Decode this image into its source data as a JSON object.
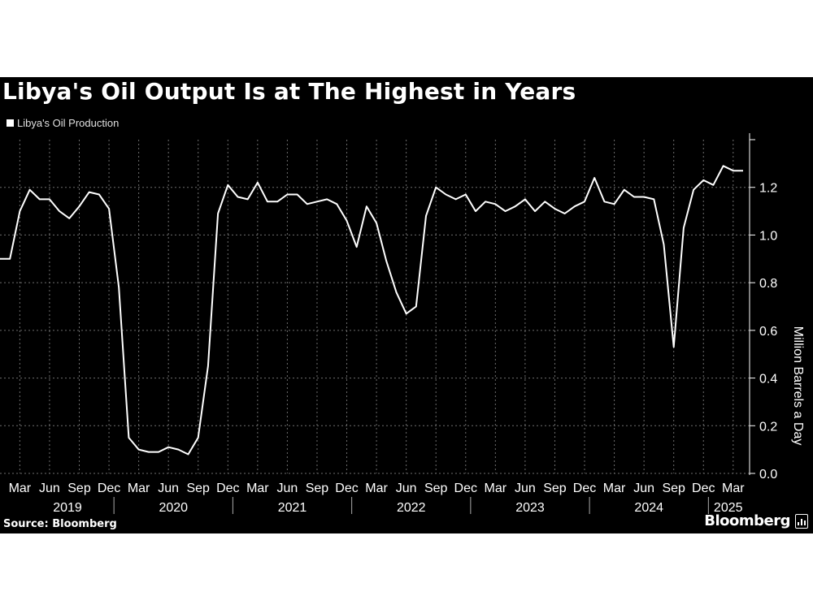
{
  "title": "Libya's Oil Output Is at The Highest in Years",
  "legend": {
    "label": "Libya's Oil Production"
  },
  "source": "Source: Bloomberg",
  "brand": "Bloomberg",
  "colors": {
    "background": "#000000",
    "line": "#ffffff",
    "grid": "#6e6e6e"
  },
  "chart_data": {
    "type": "line",
    "title": "Libya's Oil Output Is at The Highest in Years",
    "ylabel": "Million Barrels a Day",
    "ylim": [
      0,
      1.4
    ],
    "yticks": [
      0.0,
      0.2,
      0.4,
      0.6,
      0.8,
      1.0,
      1.2
    ],
    "ytick_labels": [
      "0.0",
      "0.2",
      "0.4",
      "0.6",
      "0.8",
      "1.0",
      "1.2"
    ],
    "grid": true,
    "legend_position": "top-left",
    "x_month_ticks": [
      "Mar",
      "Jun",
      "Sep",
      "Dec",
      "Mar",
      "Jun",
      "Sep",
      "Dec",
      "Mar",
      "Jun",
      "Sep",
      "Dec",
      "Mar",
      "Jun",
      "Sep",
      "Dec",
      "Mar",
      "Jun",
      "Sep",
      "Dec",
      "Mar",
      "Jun",
      "Sep",
      "Dec",
      "Mar"
    ],
    "x_year_labels": [
      "2019",
      "2020",
      "2021",
      "2022",
      "2023",
      "2024",
      "2025"
    ],
    "x": [
      "2019-01",
      "2019-02",
      "2019-03",
      "2019-04",
      "2019-05",
      "2019-06",
      "2019-07",
      "2019-08",
      "2019-09",
      "2019-10",
      "2019-11",
      "2019-12",
      "2020-01",
      "2020-02",
      "2020-03",
      "2020-04",
      "2020-05",
      "2020-06",
      "2020-07",
      "2020-08",
      "2020-09",
      "2020-10",
      "2020-11",
      "2020-12",
      "2021-01",
      "2021-02",
      "2021-03",
      "2021-04",
      "2021-05",
      "2021-06",
      "2021-07",
      "2021-08",
      "2021-09",
      "2021-10",
      "2021-11",
      "2021-12",
      "2022-01",
      "2022-02",
      "2022-03",
      "2022-04",
      "2022-05",
      "2022-06",
      "2022-07",
      "2022-08",
      "2022-09",
      "2022-10",
      "2022-11",
      "2022-12",
      "2023-01",
      "2023-02",
      "2023-03",
      "2023-04",
      "2023-05",
      "2023-06",
      "2023-07",
      "2023-08",
      "2023-09",
      "2023-10",
      "2023-11",
      "2023-12",
      "2024-01",
      "2024-02",
      "2024-03",
      "2024-04",
      "2024-05",
      "2024-06",
      "2024-07",
      "2024-08",
      "2024-09",
      "2024-10",
      "2024-11",
      "2024-12",
      "2025-01",
      "2025-02",
      "2025-03",
      "2025-04"
    ],
    "series": [
      {
        "name": "Libya's Oil Production",
        "values": [
          0.9,
          0.9,
          1.1,
          1.19,
          1.15,
          1.15,
          1.1,
          1.07,
          1.12,
          1.18,
          1.17,
          1.11,
          0.78,
          0.15,
          0.1,
          0.09,
          0.09,
          0.11,
          0.1,
          0.08,
          0.15,
          0.45,
          1.09,
          1.21,
          1.16,
          1.15,
          1.22,
          1.14,
          1.14,
          1.17,
          1.17,
          1.13,
          1.14,
          1.15,
          1.13,
          1.06,
          0.95,
          1.12,
          1.05,
          0.89,
          0.76,
          0.67,
          0.7,
          1.08,
          1.2,
          1.17,
          1.15,
          1.17,
          1.1,
          1.14,
          1.13,
          1.1,
          1.12,
          1.15,
          1.1,
          1.14,
          1.11,
          1.09,
          1.12,
          1.14,
          1.24,
          1.14,
          1.13,
          1.19,
          1.16,
          1.16,
          1.15,
          0.96,
          0.53,
          1.03,
          1.19,
          1.23,
          1.21,
          1.29,
          1.27,
          1.27
        ]
      }
    ]
  }
}
